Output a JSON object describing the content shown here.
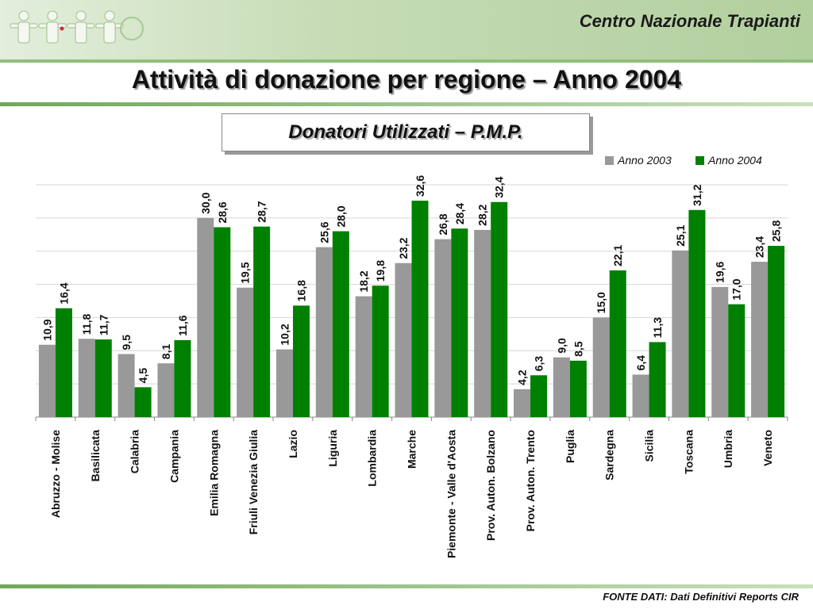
{
  "header": {
    "org_name": "Centro Nazionale Trapianti",
    "logo_icon": "people-figures-logo-icon"
  },
  "page_title": "Attività di donazione per regione – Anno 2004",
  "subtitle": "Donatori Utilizzati – P.M.P.",
  "footer": {
    "source": "FONTE DATI: Dati Definitivi Reports CIR"
  },
  "colors": {
    "anno2003": "#999999",
    "anno2004": "#008000",
    "accent_green": "#7fb06a"
  },
  "chart_data": {
    "type": "bar",
    "title": "Donatori Utilizzati – P.M.P.",
    "xlabel": "",
    "ylabel": "",
    "ylim": [
      0,
      35
    ],
    "grid": true,
    "legend": "top-right",
    "categories": [
      "Abruzzo - Molise",
      "Basilicata",
      "Calabria",
      "Campania",
      "Emilia Romagna",
      "Friuli Venezia Giulia",
      "Lazio",
      "Liguria",
      "Lombardia",
      "Marche",
      "Piemonte - Valle d'Aosta",
      "Prov. Auton. Bolzano",
      "Prov. Auton. Trento",
      "Puglia",
      "Sardegna",
      "Sicilia",
      "Toscana",
      "Umbria",
      "Veneto"
    ],
    "series": [
      {
        "name": "Anno 2003",
        "color": "#999999",
        "values": [
          10.9,
          11.8,
          9.5,
          8.1,
          30.0,
          19.5,
          10.2,
          25.6,
          18.2,
          23.2,
          26.8,
          28.2,
          4.2,
          9.0,
          15.0,
          6.4,
          25.1,
          19.6,
          23.4
        ],
        "labels": [
          "10,9",
          "11,8",
          "9,5",
          "8,1",
          "30,0",
          "19,5",
          "10,2",
          "25,6",
          "18,2",
          "23,2",
          "26,8",
          "28,2",
          "4,2",
          "9,0",
          "15,0",
          "6,4",
          "25,1",
          "19,6",
          "23,4"
        ]
      },
      {
        "name": "Anno 2004",
        "color": "#008000",
        "values": [
          16.4,
          11.7,
          4.5,
          11.6,
          28.6,
          28.7,
          16.8,
          28.0,
          19.8,
          32.6,
          28.4,
          32.4,
          6.3,
          8.5,
          22.1,
          11.3,
          31.2,
          17.0,
          25.8
        ],
        "labels": [
          "16,4",
          "11,7",
          "4,5",
          "11,6",
          "28,6",
          "28,7",
          "16,8",
          "28,0",
          "19,8",
          "32,6",
          "28,4",
          "32,4",
          "6,3",
          "8,5",
          "22,1",
          "11,3",
          "31,2",
          "17,0",
          "25,8"
        ]
      }
    ]
  }
}
